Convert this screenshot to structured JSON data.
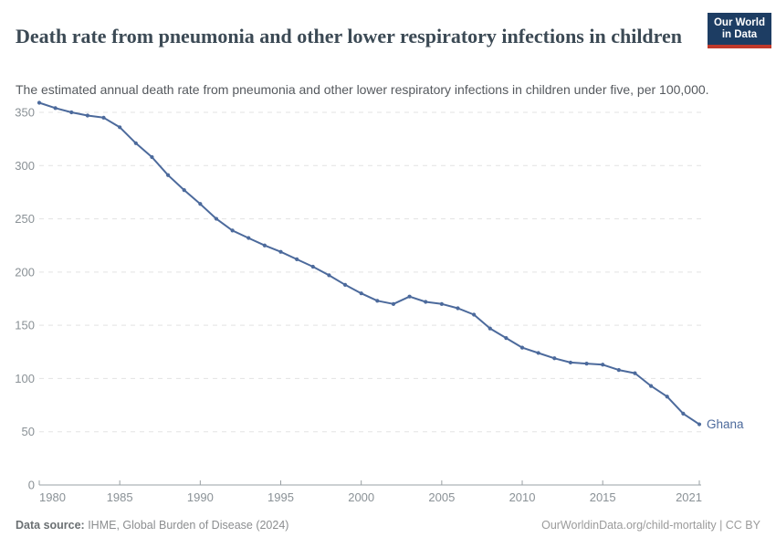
{
  "header": {
    "title": "Death rate from pneumonia and other lower respiratory infections in children",
    "subtitle": "The estimated annual death rate from pneumonia and other lower respiratory infections in children under five, per 100,000.",
    "logo": {
      "line1": "Our World",
      "line2": "in Data",
      "bg_color": "#1d3d63",
      "bar_color": "#c0392b"
    }
  },
  "chart_data": {
    "type": "line",
    "title": "Death rate from pneumonia and other lower respiratory infections in children",
    "xlabel": "",
    "ylabel": "",
    "xlim": [
      1980,
      2021
    ],
    "ylim": [
      0,
      350
    ],
    "x_ticks": [
      1980,
      1985,
      1990,
      1995,
      2000,
      2005,
      2010,
      2015,
      2021
    ],
    "y_ticks": [
      0,
      50,
      100,
      150,
      200,
      250,
      300,
      350
    ],
    "grid": "horizontal-dashed",
    "legend_position": "end-of-line",
    "x": [
      1980,
      1981,
      1982,
      1983,
      1984,
      1985,
      1986,
      1987,
      1988,
      1989,
      1990,
      1991,
      1992,
      1993,
      1994,
      1995,
      1996,
      1997,
      1998,
      1999,
      2000,
      2001,
      2002,
      2003,
      2004,
      2005,
      2006,
      2007,
      2008,
      2009,
      2010,
      2011,
      2012,
      2013,
      2014,
      2015,
      2016,
      2017,
      2018,
      2019,
      2020,
      2021
    ],
    "series": [
      {
        "name": "Ghana",
        "color": "#4C6A9C",
        "values": [
          359,
          354,
          350,
          347,
          345,
          336,
          321,
          308,
          291,
          277,
          264,
          250,
          239,
          232,
          225,
          219,
          212,
          205,
          197,
          188,
          180,
          173,
          170,
          177,
          172,
          170,
          166,
          160,
          147,
          138,
          129,
          124,
          119,
          115,
          114,
          113,
          108,
          105,
          93,
          83,
          67,
          57
        ]
      }
    ],
    "axis_text_color": "#8a9196",
    "gridline_color": "#e3e3e3",
    "axis_line_color": "#9aa0a4"
  },
  "footer": {
    "source_label": "Data source:",
    "source_text": " IHME, Global Burden of Disease (2024)",
    "link_text": "OurWorldinData.org/child-mortality | CC BY"
  }
}
